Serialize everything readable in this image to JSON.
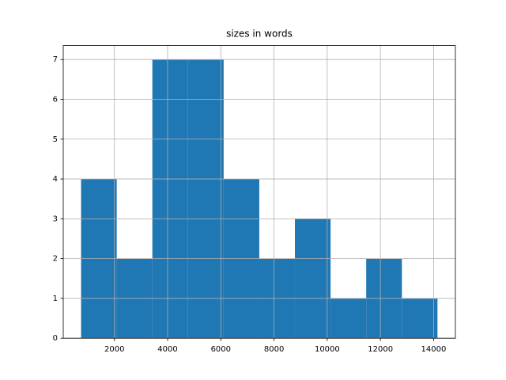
{
  "chart_data": {
    "type": "histogram",
    "title": "sizes in words",
    "bins": [
      746,
      2086,
      3426,
      4766,
      6106,
      7446,
      8786,
      10126,
      11466,
      12806,
      14146
    ],
    "values": [
      4,
      2,
      7,
      7,
      4,
      2,
      3,
      1,
      2,
      1
    ],
    "color": "#1f77b4",
    "xlim": [
      76,
      14819
    ],
    "xticks": [
      2000,
      4000,
      6000,
      8000,
      10000,
      12000,
      14000
    ],
    "ylim": [
      0,
      7.35
    ],
    "yticks": [
      0,
      1,
      2,
      3,
      4,
      5,
      6,
      7
    ],
    "grid": true
  }
}
